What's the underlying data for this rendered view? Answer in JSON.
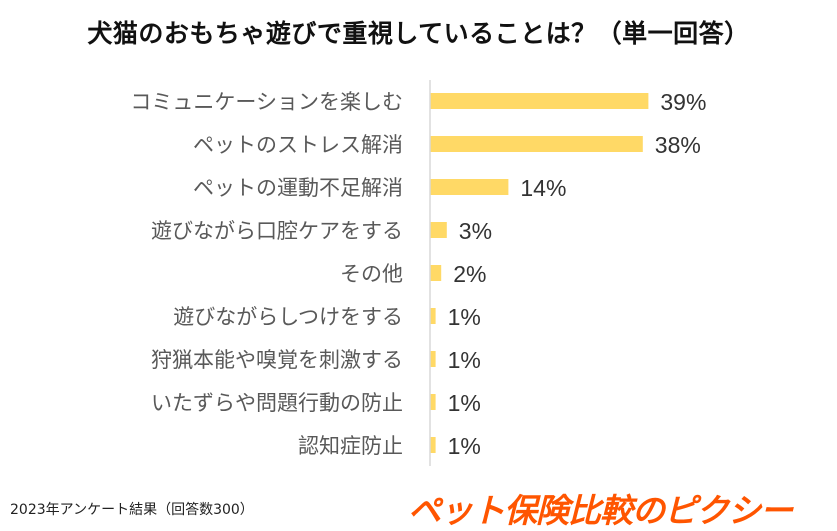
{
  "chart_data": {
    "type": "bar",
    "orientation": "horizontal",
    "title": "犬猫のおもちゃ遊びで重視していることは？（単一回答）",
    "categories": [
      "コミュニケーションを楽しむ",
      "ペットのストレス解消",
      "ペットの運動不足解消",
      "遊びながら口腔ケアをする",
      "その他",
      "遊びながらしつけをする",
      "狩猟本能や嗅覚を刺激する",
      "いたずらや問題行動の防止",
      "認知症防止"
    ],
    "values": [
      39,
      38,
      14,
      3,
      2,
      1,
      1,
      1,
      1
    ],
    "data_labels": [
      "39%",
      "38%",
      "14%",
      "3%",
      "2%",
      "1%",
      "1%",
      "1%",
      "1%"
    ],
    "unit": "%",
    "xlim": [
      0,
      40
    ],
    "grid": false,
    "legend": "none",
    "bar_color": "#FFD966"
  },
  "footnote": "2023年アンケート結果（回答数300）",
  "logo_text": "ペット保険比較のピクシー",
  "colors": {
    "logo": "#FF5500",
    "label": "#595959"
  }
}
